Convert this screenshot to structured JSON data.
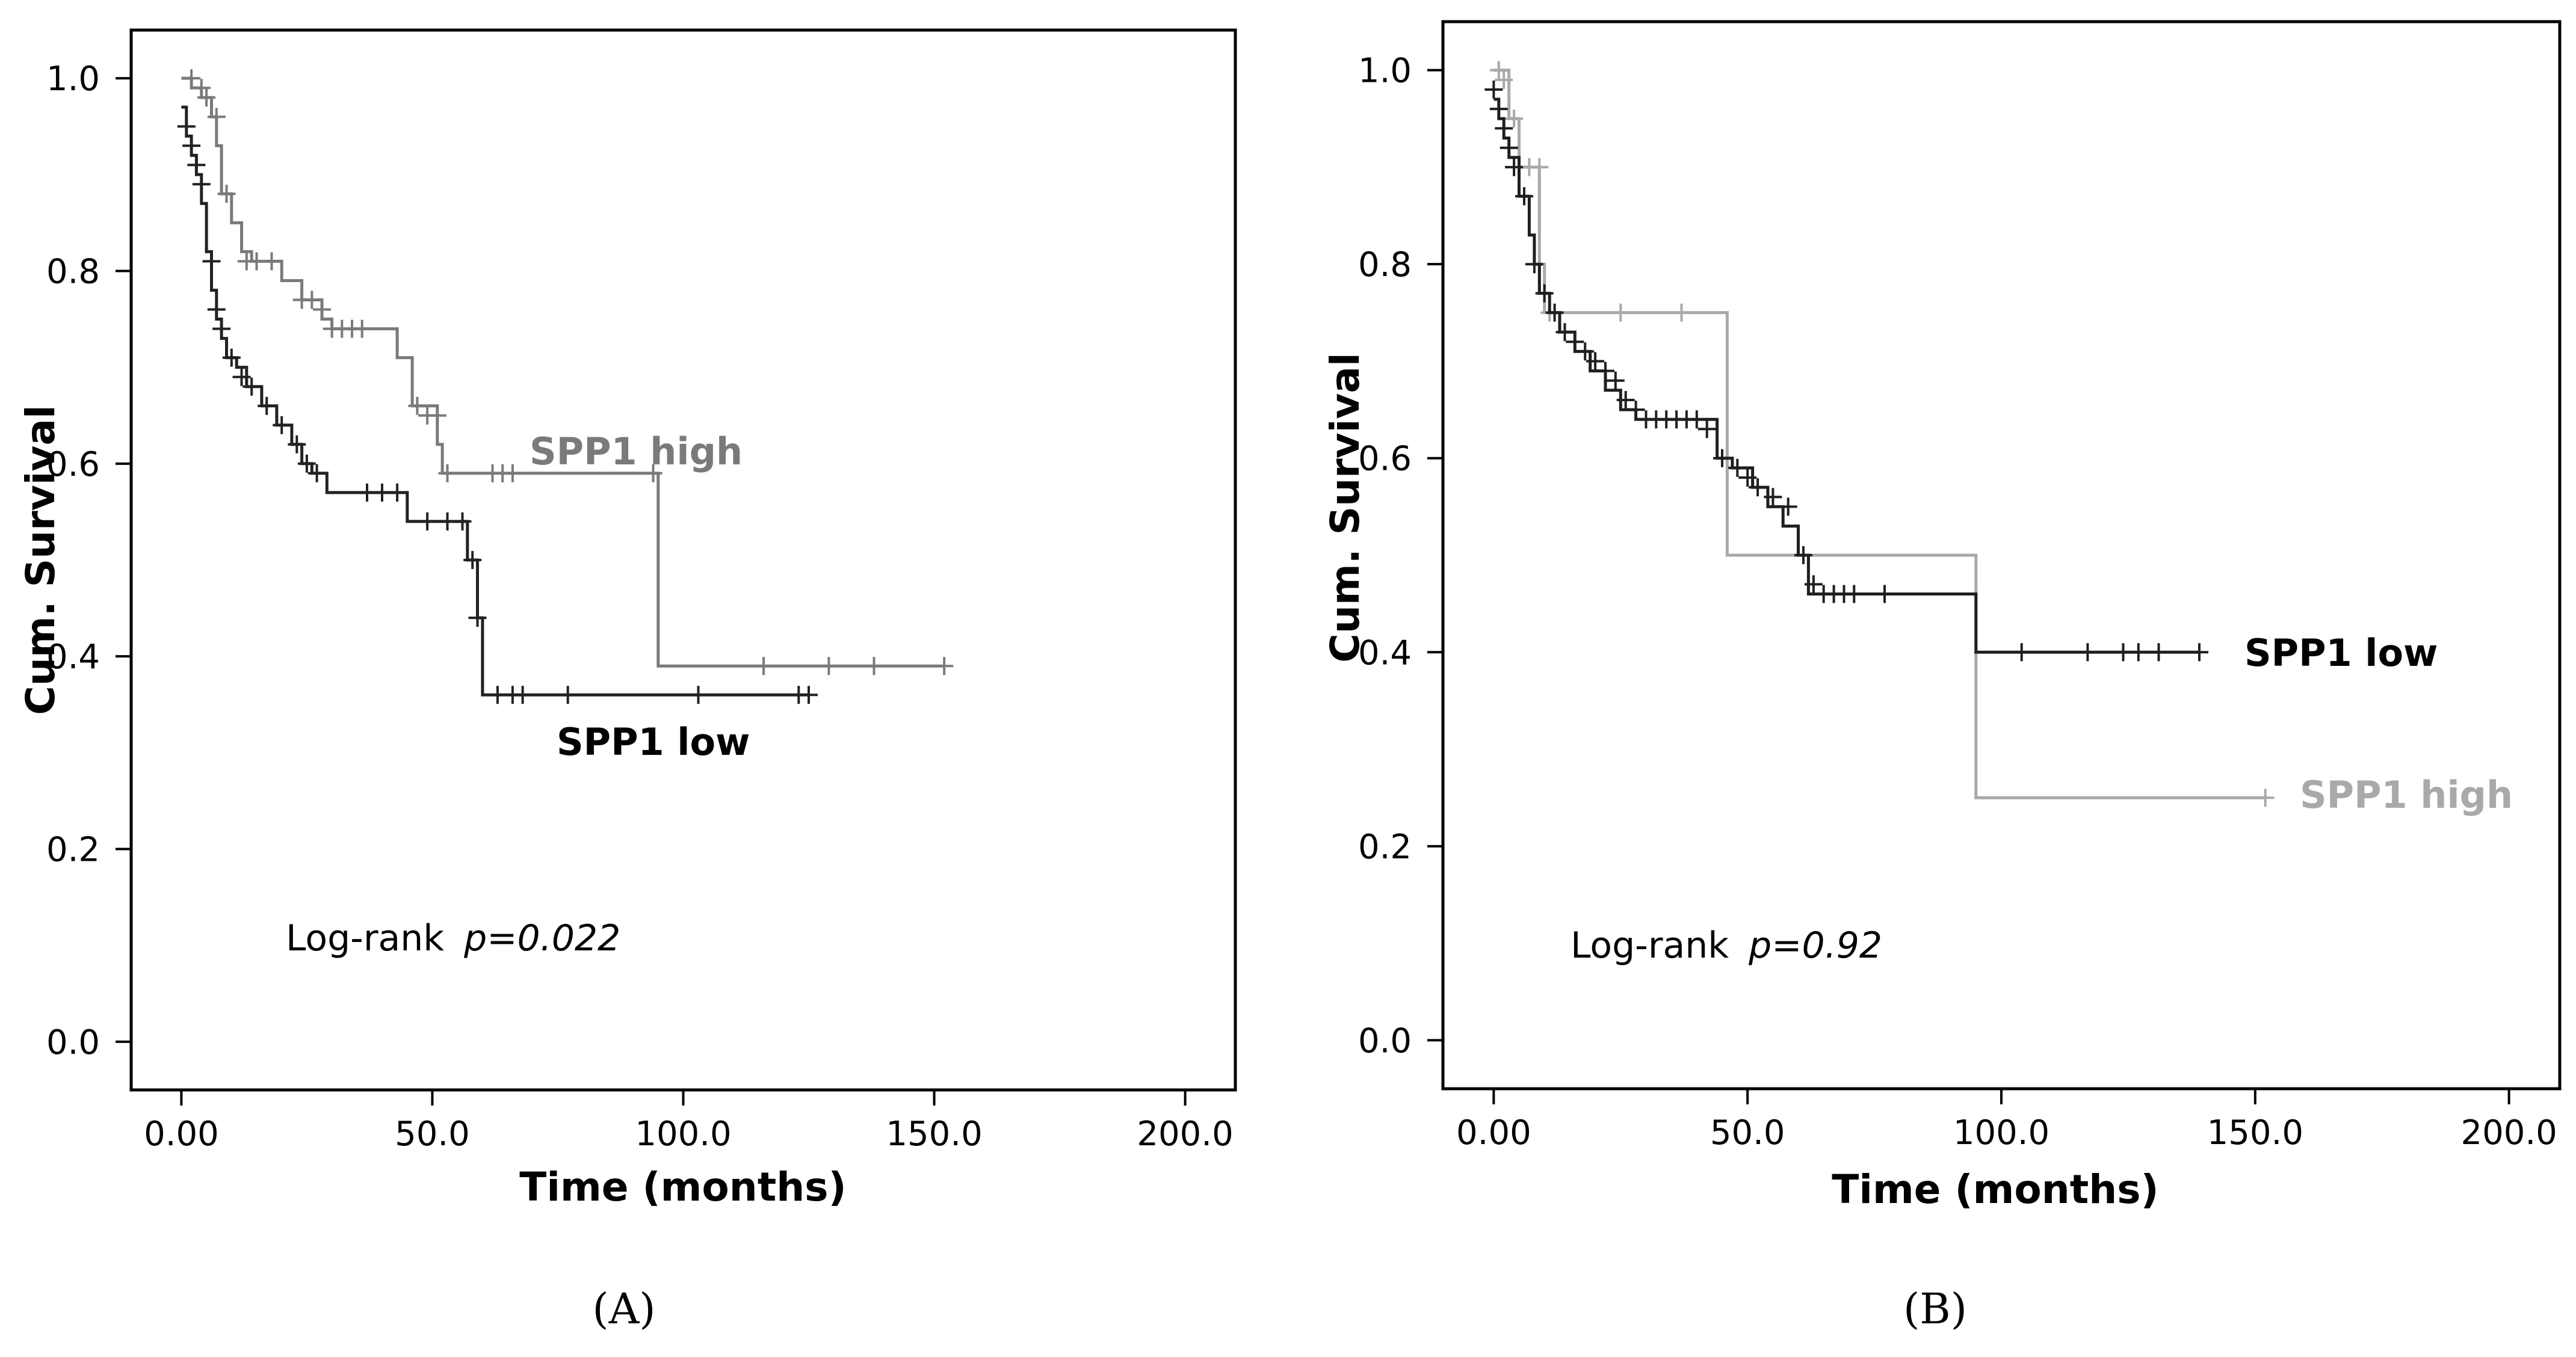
{
  "figure": {
    "panels": [
      "(A)",
      "(B)"
    ]
  },
  "chart_data": [
    {
      "type": "line",
      "subtype": "kaplan-meier",
      "panel_label": "(A)",
      "title": "",
      "xlabel": "Time (months)",
      "ylabel": "Cum. Survival",
      "xlim": [
        -10,
        210
      ],
      "ylim": [
        -0.05,
        1.05
      ],
      "x_ticks": [
        0,
        50,
        100,
        150,
        200
      ],
      "x_tick_labels": [
        "0.00",
        "50.0",
        "100.0",
        "150.0",
        "200.0"
      ],
      "y_ticks": [
        0.0,
        0.2,
        0.4,
        0.6,
        0.8,
        1.0
      ],
      "y_tick_labels": [
        "0.0",
        "0.2",
        "0.4",
        "0.6",
        "0.8",
        "1.0"
      ],
      "grid": false,
      "annotation": {
        "prefix": "Log-rank ",
        "pvalue": "p=0.022"
      },
      "series": [
        {
          "name": "SPP1 high",
          "label": "SPP1 high",
          "color": "#7a7a7a",
          "steps": [
            [
              0,
              1.0
            ],
            [
              2,
              0.99
            ],
            [
              4,
              0.98
            ],
            [
              6,
              0.96
            ],
            [
              7,
              0.93
            ],
            [
              8,
              0.88
            ],
            [
              10,
              0.85
            ],
            [
              12,
              0.82
            ],
            [
              14,
              0.81
            ],
            [
              20,
              0.79
            ],
            [
              24,
              0.77
            ],
            [
              28,
              0.75
            ],
            [
              30,
              0.74
            ],
            [
              43,
              0.71
            ],
            [
              46,
              0.66
            ],
            [
              51,
              0.62
            ],
            [
              52,
              0.59
            ],
            [
              95,
              0.39
            ],
            [
              152,
              0.39
            ]
          ],
          "censors": [
            [
              2,
              1.0
            ],
            [
              4,
              0.99
            ],
            [
              5,
              0.98
            ],
            [
              7,
              0.96
            ],
            [
              9,
              0.88
            ],
            [
              13,
              0.81
            ],
            [
              15,
              0.81
            ],
            [
              18,
              0.81
            ],
            [
              24,
              0.77
            ],
            [
              26,
              0.77
            ],
            [
              28,
              0.76
            ],
            [
              30,
              0.74
            ],
            [
              32,
              0.74
            ],
            [
              34,
              0.74
            ],
            [
              36,
              0.74
            ],
            [
              47,
              0.66
            ],
            [
              49,
              0.65
            ],
            [
              51,
              0.65
            ],
            [
              53,
              0.59
            ],
            [
              62,
              0.59
            ],
            [
              64,
              0.59
            ],
            [
              66,
              0.59
            ],
            [
              94,
              0.59
            ],
            [
              116,
              0.39
            ],
            [
              129,
              0.39
            ],
            [
              138,
              0.39
            ],
            [
              152,
              0.39
            ]
          ]
        },
        {
          "name": "SPP1 low",
          "label": "SPP1 low",
          "color": "#222222",
          "steps": [
            [
              0,
              0.97
            ],
            [
              1,
              0.94
            ],
            [
              2,
              0.92
            ],
            [
              3,
              0.9
            ],
            [
              4,
              0.87
            ],
            [
              5,
              0.82
            ],
            [
              6,
              0.78
            ],
            [
              7,
              0.75
            ],
            [
              8,
              0.73
            ],
            [
              9,
              0.71
            ],
            [
              11,
              0.7
            ],
            [
              13,
              0.68
            ],
            [
              16,
              0.66
            ],
            [
              19,
              0.64
            ],
            [
              22,
              0.62
            ],
            [
              24,
              0.6
            ],
            [
              26,
              0.59
            ],
            [
              29,
              0.57
            ],
            [
              45,
              0.54
            ],
            [
              57,
              0.5
            ],
            [
              59,
              0.44
            ],
            [
              60,
              0.36
            ],
            [
              125,
              0.36
            ]
          ],
          "censors": [
            [
              1,
              0.95
            ],
            [
              2,
              0.93
            ],
            [
              3,
              0.91
            ],
            [
              4,
              0.89
            ],
            [
              6,
              0.81
            ],
            [
              7,
              0.76
            ],
            [
              8,
              0.74
            ],
            [
              10,
              0.71
            ],
            [
              12,
              0.69
            ],
            [
              14,
              0.68
            ],
            [
              17,
              0.66
            ],
            [
              20,
              0.64
            ],
            [
              23,
              0.62
            ],
            [
              25,
              0.6
            ],
            [
              27,
              0.59
            ],
            [
              37,
              0.57
            ],
            [
              40,
              0.57
            ],
            [
              43,
              0.57
            ],
            [
              49,
              0.54
            ],
            [
              53,
              0.54
            ],
            [
              56,
              0.54
            ],
            [
              58,
              0.5
            ],
            [
              59,
              0.44
            ],
            [
              63,
              0.36
            ],
            [
              66,
              0.36
            ],
            [
              68,
              0.36
            ],
            [
              77,
              0.36
            ],
            [
              103,
              0.36
            ],
            [
              123,
              0.36
            ],
            [
              125,
              0.36
            ]
          ]
        }
      ]
    },
    {
      "type": "line",
      "subtype": "kaplan-meier",
      "panel_label": "(B)",
      "title": "",
      "xlabel": "Time (months)",
      "ylabel": "Cum. Survival",
      "xlim": [
        -10,
        210
      ],
      "ylim": [
        -0.05,
        1.05
      ],
      "x_ticks": [
        0,
        50,
        100,
        150,
        200
      ],
      "x_tick_labels": [
        "0.00",
        "50.0",
        "100.0",
        "150.0",
        "200.0"
      ],
      "y_ticks": [
        0.0,
        0.2,
        0.4,
        0.6,
        0.8,
        1.0
      ],
      "y_tick_labels": [
        "0.0",
        "0.2",
        "0.4",
        "0.6",
        "0.8",
        "1.0"
      ],
      "grid": false,
      "annotation": {
        "prefix": "Log-rank ",
        "pvalue": "p=0.92"
      },
      "series": [
        {
          "name": "SPP1 high",
          "label": "SPP1 high",
          "color": "#a9a9a9",
          "steps": [
            [
              0,
              1.0
            ],
            [
              3,
              0.95
            ],
            [
              5,
              0.9
            ],
            [
              9,
              0.8
            ],
            [
              10,
              0.75
            ],
            [
              46,
              0.5
            ],
            [
              95,
              0.25
            ],
            [
              152,
              0.25
            ]
          ],
          "censors": [
            [
              1,
              1.0
            ],
            [
              2,
              0.99
            ],
            [
              4,
              0.95
            ],
            [
              7,
              0.9
            ],
            [
              9,
              0.9
            ],
            [
              11,
              0.75
            ],
            [
              25,
              0.75
            ],
            [
              37,
              0.75
            ],
            [
              152,
              0.25
            ]
          ]
        },
        {
          "name": "SPP1 low",
          "label": "SPP1 low",
          "color": "#1f1f1f",
          "steps": [
            [
              0,
              0.97
            ],
            [
              1,
              0.95
            ],
            [
              2,
              0.93
            ],
            [
              3,
              0.91
            ],
            [
              5,
              0.87
            ],
            [
              7,
              0.83
            ],
            [
              8,
              0.8
            ],
            [
              9,
              0.77
            ],
            [
              11,
              0.75
            ],
            [
              13,
              0.73
            ],
            [
              16,
              0.71
            ],
            [
              19,
              0.69
            ],
            [
              22,
              0.67
            ],
            [
              25,
              0.65
            ],
            [
              28,
              0.64
            ],
            [
              44,
              0.6
            ],
            [
              47,
              0.59
            ],
            [
              51,
              0.57
            ],
            [
              54,
              0.55
            ],
            [
              57,
              0.53
            ],
            [
              60,
              0.5
            ],
            [
              62,
              0.46
            ],
            [
              95,
              0.4
            ],
            [
              139,
              0.4
            ]
          ],
          "censors": [
            [
              0,
              0.98
            ],
            [
              1,
              0.96
            ],
            [
              2,
              0.94
            ],
            [
              3,
              0.92
            ],
            [
              4,
              0.9
            ],
            [
              6,
              0.87
            ],
            [
              8,
              0.8
            ],
            [
              10,
              0.77
            ],
            [
              12,
              0.75
            ],
            [
              14,
              0.73
            ],
            [
              16,
              0.72
            ],
            [
              18,
              0.71
            ],
            [
              20,
              0.7
            ],
            [
              22,
              0.69
            ],
            [
              24,
              0.68
            ],
            [
              26,
              0.66
            ],
            [
              28,
              0.65
            ],
            [
              30,
              0.64
            ],
            [
              32,
              0.64
            ],
            [
              34,
              0.64
            ],
            [
              36,
              0.64
            ],
            [
              38,
              0.64
            ],
            [
              40,
              0.64
            ],
            [
              42,
              0.63
            ],
            [
              45,
              0.6
            ],
            [
              48,
              0.59
            ],
            [
              50,
              0.58
            ],
            [
              52,
              0.57
            ],
            [
              55,
              0.56
            ],
            [
              58,
              0.55
            ],
            [
              61,
              0.5
            ],
            [
              63,
              0.47
            ],
            [
              65,
              0.46
            ],
            [
              67,
              0.46
            ],
            [
              69,
              0.46
            ],
            [
              71,
              0.46
            ],
            [
              77,
              0.46
            ],
            [
              104,
              0.4
            ],
            [
              117,
              0.4
            ],
            [
              124,
              0.4
            ],
            [
              127,
              0.4
            ],
            [
              131,
              0.4
            ],
            [
              139,
              0.4
            ]
          ]
        }
      ]
    }
  ]
}
